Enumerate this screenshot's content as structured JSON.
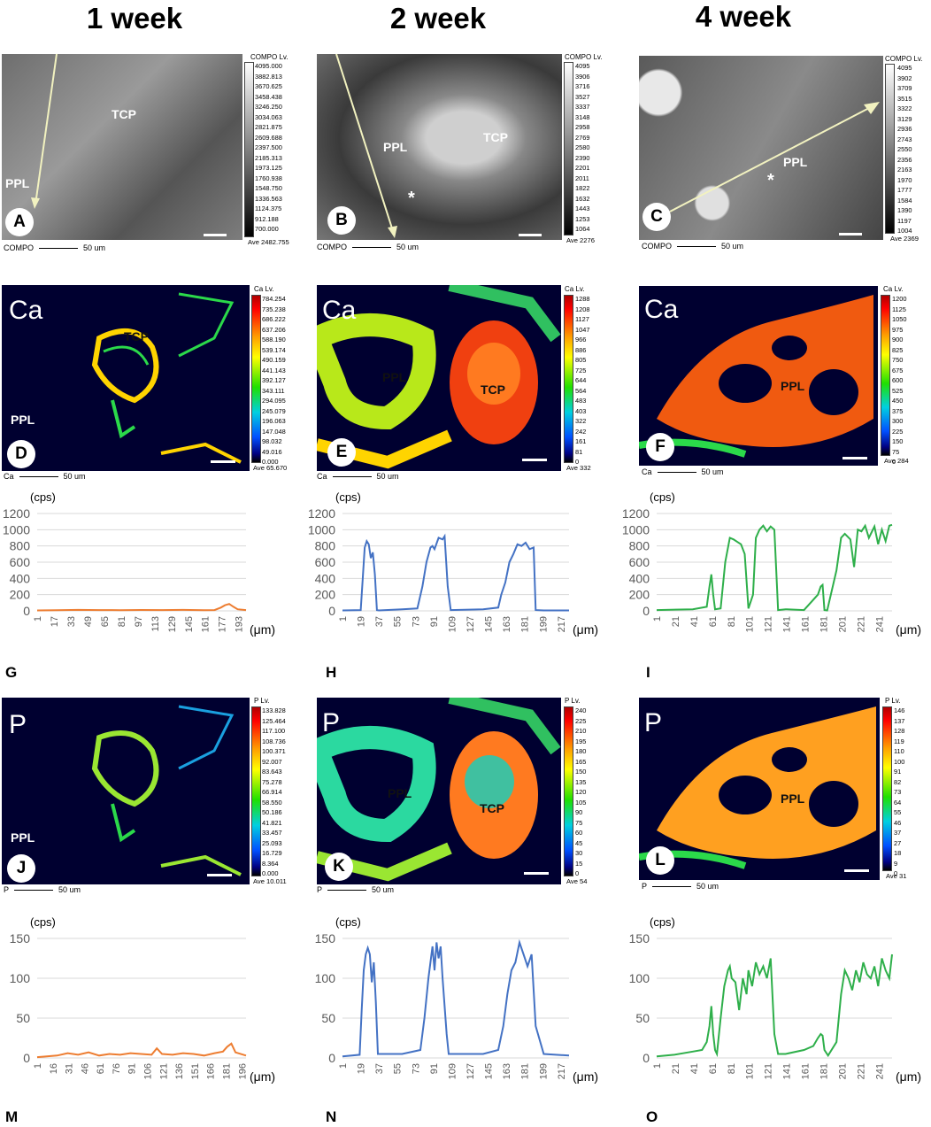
{
  "columns": [
    "1 week",
    "2 week",
    "4 week"
  ],
  "sem": {
    "A": {
      "badge": "A",
      "labels": {
        "tcp": "TCP",
        "ppl": "PPL"
      },
      "cb_title": "COMPO Lv.",
      "cb_values": [
        "4095.000",
        "3882.813",
        "3670.625",
        "3458.438",
        "3246.250",
        "3034.063",
        "2821.875",
        "2609.688",
        "2397.500",
        "2185.313",
        "1973.125",
        "1760.938",
        "1548.750",
        "1336.563",
        "1124.375",
        "912.188",
        "700.000"
      ],
      "ave": "Ave 2482.755",
      "footer": "COMPO",
      "scale": "50 um"
    },
    "B": {
      "badge": "B",
      "labels": {
        "tcp": "TCP",
        "ppl": "PPL",
        "star": "*"
      },
      "cb_title": "COMPO Lv.",
      "cb_values": [
        "4095",
        "3906",
        "3716",
        "3527",
        "3337",
        "3148",
        "2958",
        "2769",
        "2580",
        "2390",
        "2201",
        "2011",
        "1822",
        "1632",
        "1443",
        "1253",
        "1064"
      ],
      "ave": "Ave 2276",
      "footer": "COMPO",
      "scale": "50 um"
    },
    "C": {
      "badge": "C",
      "labels": {
        "ppl": "PPL",
        "star": "*"
      },
      "cb_title": "COMPO Lv.",
      "cb_values": [
        "4095",
        "3902",
        "3709",
        "3515",
        "3322",
        "3129",
        "2936",
        "2743",
        "2550",
        "2356",
        "2163",
        "1970",
        "1777",
        "1584",
        "1390",
        "1197",
        "1004"
      ],
      "ave": "Ave 2369",
      "footer": "COMPO",
      "scale": "50 um"
    }
  },
  "maps": {
    "D": {
      "badge": "D",
      "elem": "Ca",
      "labels": {
        "tcp": "TCP",
        "ppl": "PPL"
      },
      "cb_title": "Ca Lv.",
      "cb_values": [
        "784.254",
        "735.238",
        "686.222",
        "637.206",
        "588.190",
        "539.174",
        "490.159",
        "441.143",
        "392.127",
        "343.111",
        "294.095",
        "245.079",
        "196.063",
        "147.048",
        "98.032",
        "49.016",
        "0.000"
      ],
      "ave": "Ave 65.670",
      "footer": "Ca",
      "scale": "50 um"
    },
    "E": {
      "badge": "E",
      "elem": "Ca",
      "labels": {
        "tcp": "TCP",
        "ppl": "PPL"
      },
      "cb_title": "Ca Lv.",
      "cb_values": [
        "1288",
        "1208",
        "1127",
        "1047",
        "966",
        "886",
        "805",
        "725",
        "644",
        "564",
        "483",
        "403",
        "322",
        "242",
        "161",
        "81",
        "0"
      ],
      "ave": "Ave 332",
      "footer": "Ca",
      "scale": "50 um"
    },
    "F": {
      "badge": "F",
      "elem": "Ca",
      "labels": {
        "ppl": "PPL"
      },
      "cb_title": "Ca Lv.",
      "cb_values": [
        "1200",
        "1125",
        "1050",
        "975",
        "900",
        "825",
        "750",
        "675",
        "600",
        "525",
        "450",
        "375",
        "300",
        "225",
        "150",
        "75",
        "0"
      ],
      "ave": "Ave 284",
      "footer": "Ca",
      "scale": "50 um"
    },
    "J": {
      "badge": "J",
      "elem": "P",
      "labels": {
        "ppl": "PPL"
      },
      "cb_title": "P Lv.",
      "cb_values": [
        "133.828",
        "125.464",
        "117.100",
        "108.736",
        "100.371",
        "92.007",
        "83.643",
        "75.278",
        "66.914",
        "58.550",
        "50.186",
        "41.821",
        "33.457",
        "25.093",
        "16.729",
        "8.364",
        "0.000"
      ],
      "ave": "Ave 10.011",
      "footer": "P",
      "scale": "50 um"
    },
    "K": {
      "badge": "K",
      "elem": "P",
      "labels": {
        "tcp": "TCP",
        "ppl": "PPL"
      },
      "cb_title": "P Lv.",
      "cb_values": [
        "240",
        "225",
        "210",
        "195",
        "180",
        "165",
        "150",
        "135",
        "120",
        "105",
        "90",
        "75",
        "60",
        "45",
        "30",
        "15",
        "0"
      ],
      "ave": "Ave 54",
      "footer": "P",
      "scale": "50 um"
    },
    "L": {
      "badge": "L",
      "elem": "P",
      "labels": {
        "ppl": "PPL"
      },
      "cb_title": "P Lv.",
      "cb_values": [
        "146",
        "137",
        "128",
        "119",
        "110",
        "100",
        "91",
        "82",
        "73",
        "64",
        "55",
        "46",
        "37",
        "27",
        "18",
        "9",
        "0"
      ],
      "ave": "Ave 31",
      "footer": "P",
      "scale": "50 um"
    }
  },
  "chart_data": [
    {
      "id": "G",
      "type": "line",
      "ylabel": "(cps)",
      "xlabel": "(μm)",
      "ylim": [
        0,
        1200
      ],
      "yticks": [
        "0",
        "200",
        "400",
        "600",
        "800",
        "1000",
        "1200"
      ],
      "xticks": [
        "1",
        "17",
        "33",
        "49",
        "65",
        "81",
        "97",
        "113",
        "129",
        "145",
        "161",
        "177",
        "193"
      ],
      "xmax": 200,
      "color": "#ED7D31",
      "series": [
        {
          "x": [
            1,
            20,
            40,
            60,
            80,
            100,
            120,
            140,
            160,
            170,
            176,
            180,
            184,
            188,
            192,
            200
          ],
          "y": [
            5,
            8,
            12,
            10,
            9,
            11,
            10,
            12,
            9,
            10,
            40,
            70,
            85,
            50,
            20,
            10
          ]
        }
      ]
    },
    {
      "id": "H",
      "type": "line",
      "ylabel": "(cps)",
      "xlabel": "(μm)",
      "ylim": [
        0,
        1200
      ],
      "yticks": [
        "0",
        "200",
        "400",
        "600",
        "800",
        "1000",
        "1200"
      ],
      "xticks": [
        "1",
        "19",
        "37",
        "55",
        "73",
        "91",
        "109",
        "127",
        "145",
        "163",
        "181",
        "199",
        "217"
      ],
      "xmax": 225,
      "color": "#4472C4",
      "series": [
        {
          "x": [
            1,
            19,
            21,
            23,
            25,
            27,
            29,
            31,
            33,
            35,
            37,
            60,
            75,
            80,
            84,
            88,
            90,
            92,
            96,
            100,
            102,
            105,
            108,
            140,
            155,
            158,
            162,
            166,
            170,
            174,
            178,
            182,
            186,
            190,
            192,
            200,
            225
          ],
          "y": [
            5,
            10,
            400,
            780,
            860,
            820,
            650,
            720,
            450,
            10,
            5,
            20,
            30,
            300,
            600,
            780,
            800,
            760,
            900,
            880,
            920,
            300,
            10,
            20,
            40,
            200,
            350,
            600,
            700,
            820,
            800,
            840,
            760,
            780,
            10,
            5,
            5
          ]
        }
      ]
    },
    {
      "id": "I",
      "type": "line",
      "ylabel": "(cps)",
      "xlabel": "(μm)",
      "ylim": [
        0,
        1200
      ],
      "yticks": [
        "0",
        "200",
        "400",
        "600",
        "800",
        "1000",
        "1200"
      ],
      "xticks": [
        "1",
        "21",
        "41",
        "61",
        "81",
        "101",
        "121",
        "141",
        "161",
        "181",
        "201",
        "221",
        "241"
      ],
      "xmax": 255,
      "color": "#2EAF4A",
      "series": [
        {
          "x": [
            1,
            40,
            55,
            58,
            60,
            62,
            64,
            70,
            75,
            80,
            84,
            88,
            92,
            96,
            100,
            105,
            108,
            112,
            116,
            120,
            124,
            128,
            132,
            140,
            160,
            175,
            178,
            180,
            182,
            185,
            195,
            200,
            204,
            210,
            214,
            218,
            222,
            226,
            230,
            236,
            240,
            244,
            248,
            252,
            255
          ],
          "y": [
            10,
            20,
            50,
            300,
            450,
            200,
            20,
            30,
            600,
            900,
            880,
            850,
            820,
            700,
            30,
            200,
            900,
            1000,
            1050,
            980,
            1040,
            1000,
            10,
            20,
            10,
            200,
            300,
            320,
            10,
            5,
            500,
            900,
            950,
            880,
            540,
            1000,
            980,
            1050,
            900,
            1040,
            820,
            1000,
            860,
            1050,
            1060
          ]
        }
      ]
    },
    {
      "id": "M",
      "type": "line",
      "ylabel": "(cps)",
      "xlabel": "(μm)",
      "ylim": [
        0,
        150
      ],
      "yticks": [
        "0",
        "50",
        "100",
        "150"
      ],
      "xticks": [
        "1",
        "16",
        "31",
        "46",
        "61",
        "76",
        "91",
        "106",
        "121",
        "136",
        "151",
        "166",
        "181",
        "196"
      ],
      "xmax": 200,
      "color": "#ED7D31",
      "series": [
        {
          "x": [
            1,
            10,
            20,
            30,
            40,
            50,
            60,
            70,
            80,
            90,
            100,
            110,
            115,
            120,
            130,
            140,
            150,
            160,
            170,
            178,
            182,
            186,
            190,
            200
          ],
          "y": [
            1,
            2,
            3,
            6,
            4,
            7,
            3,
            5,
            4,
            6,
            5,
            4,
            12,
            5,
            4,
            6,
            5,
            3,
            6,
            8,
            14,
            18,
            7,
            3
          ]
        }
      ]
    },
    {
      "id": "N",
      "type": "line",
      "ylabel": "(cps)",
      "xlabel": "(μm)",
      "ylim": [
        0,
        150
      ],
      "yticks": [
        "0",
        "50",
        "100",
        "150"
      ],
      "xticks": [
        "1",
        "19",
        "37",
        "55",
        "73",
        "91",
        "109",
        "127",
        "145",
        "163",
        "181",
        "199",
        "217"
      ],
      "xmax": 225,
      "color": "#4472C4",
      "series": [
        {
          "x": [
            1,
            18,
            20,
            22,
            24,
            26,
            28,
            30,
            32,
            34,
            36,
            60,
            78,
            82,
            86,
            88,
            90,
            92,
            94,
            96,
            98,
            100,
            104,
            106,
            140,
            155,
            160,
            164,
            168,
            172,
            176,
            180,
            184,
            188,
            192,
            200,
            225
          ],
          "y": [
            2,
            4,
            60,
            110,
            130,
            138,
            130,
            95,
            120,
            70,
            5,
            5,
            10,
            50,
            100,
            120,
            140,
            110,
            145,
            125,
            140,
            100,
            30,
            5,
            5,
            10,
            40,
            80,
            110,
            120,
            145,
            130,
            115,
            130,
            40,
            5,
            3
          ]
        }
      ]
    },
    {
      "id": "O",
      "type": "line",
      "ylabel": "(cps)",
      "xlabel": "(μm)",
      "ylim": [
        0,
        150
      ],
      "yticks": [
        "0",
        "50",
        "100",
        "150"
      ],
      "xticks": [
        "1",
        "21",
        "41",
        "61",
        "81",
        "101",
        "121",
        "141",
        "161",
        "181",
        "201",
        "221",
        "241"
      ],
      "xmax": 255,
      "color": "#2EAF4A",
      "series": [
        {
          "x": [
            1,
            20,
            40,
            50,
            55,
            58,
            60,
            62,
            64,
            66,
            70,
            74,
            78,
            80,
            82,
            86,
            90,
            94,
            98,
            100,
            104,
            108,
            112,
            116,
            120,
            124,
            128,
            132,
            140,
            160,
            170,
            175,
            178,
            180,
            182,
            186,
            195,
            200,
            204,
            208,
            212,
            216,
            220,
            224,
            228,
            232,
            236,
            240,
            244,
            248,
            252,
            255
          ],
          "y": [
            2,
            4,
            8,
            10,
            20,
            40,
            65,
            30,
            10,
            5,
            50,
            90,
            110,
            115,
            100,
            95,
            60,
            100,
            80,
            110,
            90,
            120,
            105,
            115,
            100,
            125,
            30,
            5,
            5,
            10,
            15,
            25,
            30,
            28,
            10,
            3,
            20,
            80,
            110,
            100,
            85,
            110,
            95,
            120,
            105,
            100,
            115,
            90,
            125,
            110,
            100,
            130
          ]
        }
      ]
    }
  ],
  "panel_letters": [
    "G",
    "H",
    "I",
    "M",
    "N",
    "O"
  ]
}
